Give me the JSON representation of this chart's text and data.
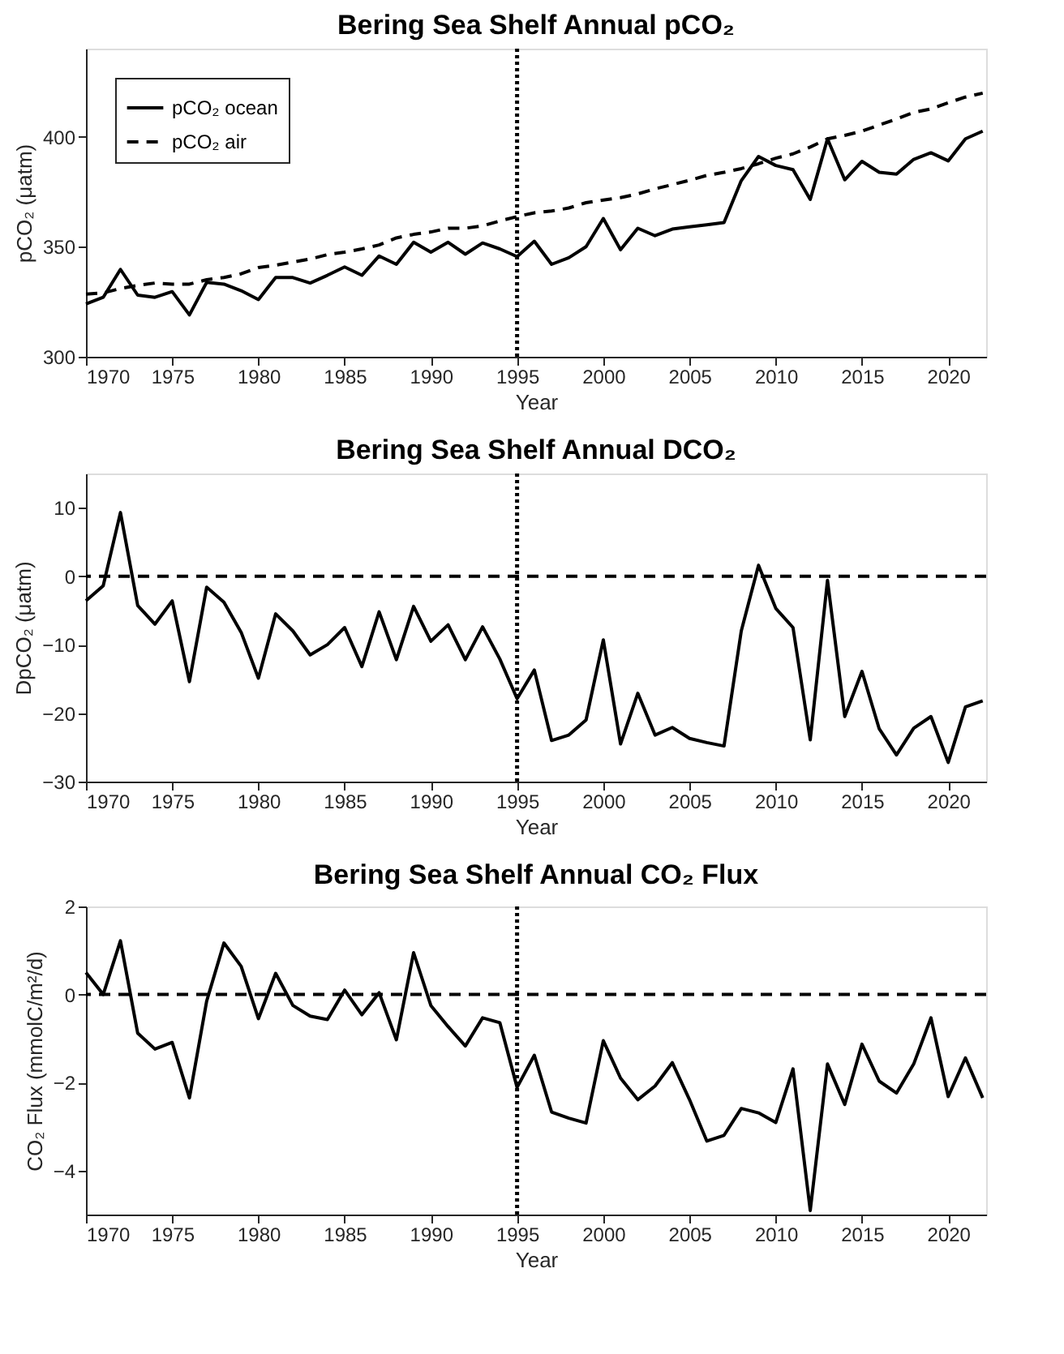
{
  "chart_data": [
    {
      "type": "line",
      "title": "Bering Sea Shelf Annual pCO₂",
      "xlabel": "Year",
      "ylabel": "pCO₂ (μatm)",
      "x": [
        1970,
        1971,
        1972,
        1973,
        1974,
        1975,
        1976,
        1977,
        1978,
        1979,
        1980,
        1981,
        1982,
        1983,
        1984,
        1985,
        1986,
        1987,
        1988,
        1989,
        1990,
        1991,
        1992,
        1993,
        1994,
        1995,
        1996,
        1997,
        1998,
        1999,
        2000,
        2001,
        2002,
        2003,
        2004,
        2005,
        2006,
        2007,
        2008,
        2009,
        2010,
        2011,
        2012,
        2013,
        2014,
        2015,
        2016,
        2017,
        2018,
        2019,
        2020,
        2021,
        2022
      ],
      "series": [
        {
          "name": "pCO₂ ocean",
          "color": "#000000",
          "line_style": "solid",
          "values": [
            324,
            327,
            339.7,
            328,
            327,
            329.6,
            319,
            333.8,
            333,
            330,
            326,
            336,
            336,
            333.5,
            337,
            340.8,
            337,
            345.8,
            342,
            352,
            347.5,
            352,
            346.6,
            351.7,
            349,
            345.5,
            352.5,
            342,
            345,
            350,
            362.8,
            348.6,
            358.4,
            355,
            358,
            359,
            360,
            361,
            380,
            391,
            386.9,
            385,
            371.5,
            399,
            380.4,
            388.8,
            383.8,
            383,
            389.7,
            392.7,
            389,
            399,
            402.5
          ]
        },
        {
          "name": "pCO₂ air",
          "color": "#000000",
          "line_style": "dashed",
          "values": [
            328.5,
            329,
            331,
            332.4,
            333.5,
            333,
            333,
            335,
            336,
            337.7,
            340.5,
            341.6,
            343,
            344.4,
            346.4,
            347.5,
            349,
            350.8,
            354,
            355.6,
            356.7,
            358.4,
            358.4,
            359.5,
            361.7,
            363.7,
            365.4,
            366.2,
            367.6,
            370,
            371.2,
            372.3,
            374,
            376.3,
            378.2,
            380.2,
            382.4,
            383.8,
            385.5,
            387.7,
            390.2,
            392.2,
            395.3,
            399,
            400.6,
            402.5,
            405.3,
            408,
            411,
            412.6,
            415.4,
            418,
            419.8
          ]
        }
      ],
      "xlim": [
        1970,
        2022.2
      ],
      "xticks": [
        1970,
        1975,
        1980,
        1985,
        1990,
        1995,
        2000,
        2005,
        2010,
        2015,
        2020
      ],
      "ylim": [
        300,
        440
      ],
      "yticks": [
        300,
        350,
        400
      ],
      "ref_lines": [
        {
          "axis": "x",
          "value": 1995,
          "color": "#000000",
          "line_style": "dotted"
        }
      ],
      "legend": "top left",
      "grid": false
    },
    {
      "type": "line",
      "title": "Bering Sea Shelf Annual DCO₂",
      "xlabel": "Year",
      "ylabel": "DpCO₂ (μatm)",
      "x": [
        1970,
        1971,
        1972,
        1973,
        1974,
        1975,
        1976,
        1977,
        1978,
        1979,
        1980,
        1981,
        1982,
        1983,
        1984,
        1985,
        1986,
        1987,
        1988,
        1989,
        1990,
        1991,
        1992,
        1993,
        1994,
        1995,
        1996,
        1997,
        1998,
        1999,
        2000,
        2001,
        2002,
        2003,
        2004,
        2005,
        2006,
        2007,
        2008,
        2009,
        2010,
        2011,
        2012,
        2013,
        2014,
        2015,
        2016,
        2017,
        2018,
        2019,
        2020,
        2021,
        2022
      ],
      "series": [
        {
          "color": "#000000",
          "line_style": "solid",
          "values": [
            -3.6,
            -1.4,
            9.3,
            -4.3,
            -7,
            -3.6,
            -15.4,
            -1.6,
            -3.8,
            -8.2,
            -14.9,
            -5.5,
            -8,
            -11.5,
            -10,
            -7.5,
            -13.2,
            -5.2,
            -12.2,
            -4.4,
            -9.5,
            -7.1,
            -12.2,
            -7.4,
            -12.1,
            -17.9,
            -13.7,
            -24,
            -23.2,
            -21,
            -9.3,
            -24.5,
            -17.1,
            -23.2,
            -22.1,
            -23.7,
            -24.3,
            -24.8,
            -8,
            1.6,
            -4.7,
            -7.5,
            -23.9,
            -0.6,
            -20.5,
            -13.9,
            -22.3,
            -26.1,
            -22.2,
            -20.5,
            -27.2,
            -19.1,
            -18.2
          ]
        }
      ],
      "xlim": [
        1970,
        2022.2
      ],
      "xticks": [
        1970,
        1975,
        1980,
        1985,
        1990,
        1995,
        2000,
        2005,
        2010,
        2015,
        2020
      ],
      "ylim": [
        -30,
        15
      ],
      "yticks": [
        -30,
        -20,
        -10,
        0,
        10
      ],
      "ref_lines": [
        {
          "axis": "x",
          "value": 1995,
          "color": "#000000",
          "line_style": "dotted"
        },
        {
          "axis": "y",
          "value": 0,
          "color": "#000000",
          "line_style": "dashed"
        }
      ],
      "grid": false
    },
    {
      "type": "line",
      "title": "Bering Sea Shelf Annual CO₂ Flux",
      "xlabel": "Year",
      "ylabel": "CO₂ Flux (mmolC/m²/d)",
      "x": [
        1970,
        1971,
        1972,
        1973,
        1974,
        1975,
        1976,
        1977,
        1978,
        1979,
        1980,
        1981,
        1982,
        1983,
        1984,
        1985,
        1986,
        1987,
        1988,
        1989,
        1990,
        1991,
        1992,
        1993,
        1994,
        1995,
        1996,
        1997,
        1998,
        1999,
        2000,
        2001,
        2002,
        2003,
        2004,
        2005,
        2006,
        2007,
        2008,
        2009,
        2010,
        2011,
        2012,
        2013,
        2014,
        2015,
        2016,
        2017,
        2018,
        2019,
        2020,
        2021,
        2022
      ],
      "series": [
        {
          "color": "#000000",
          "line_style": "solid",
          "values": [
            0.5,
            0,
            1.22,
            -0.88,
            -1.24,
            -1.09,
            -2.35,
            -0.15,
            1.17,
            0.64,
            -0.55,
            0.48,
            -0.25,
            -0.49,
            -0.57,
            0.1,
            -0.46,
            0.04,
            -1.03,
            0.95,
            -0.25,
            -0.73,
            -1.17,
            -0.53,
            -0.64,
            -2.11,
            -1.38,
            -2.67,
            -2.81,
            -2.92,
            -1.05,
            -1.9,
            -2.39,
            -2.08,
            -1.55,
            -2.39,
            -3.33,
            -3.2,
            -2.59,
            -2.69,
            -2.91,
            -1.69,
            -4.91,
            -1.58,
            -2.5,
            -1.13,
            -1.97,
            -2.24,
            -1.58,
            -0.53,
            -2.32,
            -1.44,
            -2.35
          ]
        }
      ],
      "xlim": [
        1970,
        2022.2
      ],
      "xticks": [
        1970,
        1975,
        1980,
        1985,
        1990,
        1995,
        2000,
        2005,
        2010,
        2015,
        2020
      ],
      "ylim": [
        -5,
        2
      ],
      "yticks": [
        -4,
        -2,
        0,
        2
      ],
      "ref_lines": [
        {
          "axis": "x",
          "value": 1995,
          "color": "#000000",
          "line_style": "dotted"
        },
        {
          "axis": "y",
          "value": 0,
          "color": "#000000",
          "line_style": "dashed"
        }
      ],
      "grid": false
    }
  ]
}
